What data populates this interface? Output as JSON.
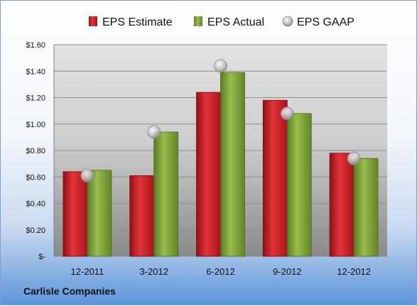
{
  "chart_data": {
    "type": "bar",
    "categories": [
      "12-2011",
      "3-2012",
      "6-2012",
      "9-2012",
      "12-2012"
    ],
    "series": [
      {
        "name": "EPS Estimate",
        "type": "bar",
        "values": [
          0.64,
          0.61,
          1.24,
          1.18,
          0.78
        ],
        "color": "#c8202a"
      },
      {
        "name": "EPS Actual",
        "type": "bar",
        "values": [
          0.65,
          0.94,
          1.39,
          1.08,
          0.74
        ],
        "color": "#7ea43a"
      },
      {
        "name": "EPS GAAP",
        "type": "scatter",
        "values": [
          0.61,
          0.94,
          1.44,
          1.08,
          0.74
        ],
        "color": "#b8b8b8"
      }
    ],
    "ylim": [
      0,
      1.6
    ],
    "yticks": [
      0,
      0.2,
      0.4,
      0.6,
      0.8,
      1.0,
      1.2,
      1.4,
      1.6
    ],
    "ytick_labels": [
      "$-",
      "$0.20",
      "$0.40",
      "$0.60",
      "$0.80",
      "$1.00",
      "$1.20",
      "$1.40",
      "$1.60"
    ],
    "grid": true,
    "legend_position": "top"
  },
  "company": "Carlisle Companies"
}
